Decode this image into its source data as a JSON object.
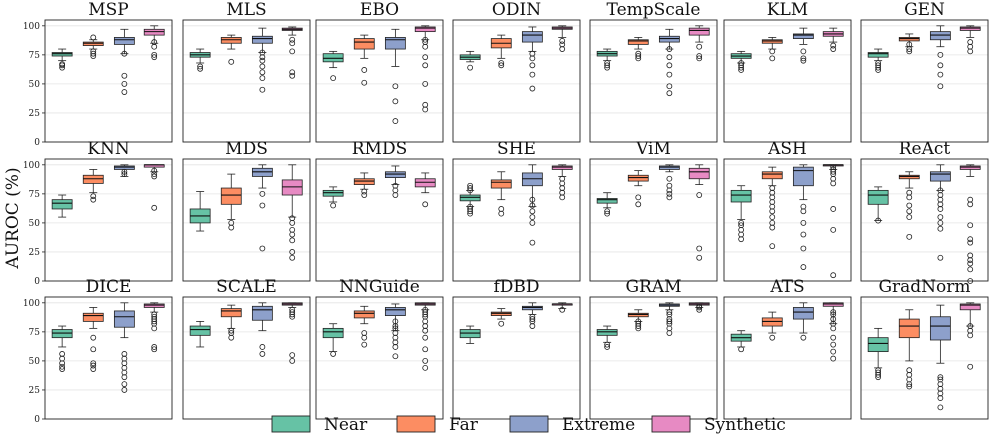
{
  "chart_data": {
    "type": "boxplot",
    "ylabel": "AUROC (%)",
    "ylim": [
      0,
      105
    ],
    "yticks": [
      0,
      25,
      50,
      75,
      100
    ],
    "categories": [
      "Near",
      "Far",
      "Extreme",
      "Synthetic"
    ],
    "colors": {
      "Near": "#66c2a5",
      "Far": "#fc8d62",
      "Extreme": "#8da0cb",
      "Synthetic": "#e78ac3"
    },
    "legend": {
      "position": "bottom-center",
      "labels": [
        "Near",
        "Far",
        "Extreme",
        "Synthetic"
      ]
    },
    "panels": [
      {
        "title": "MSP",
        "boxes": [
          [
            70,
            74,
            76,
            77,
            80,
            [
              64,
              66,
              67
            ]
          ],
          [
            80,
            83,
            85,
            86,
            88,
            [
              74,
              76,
              78,
              90
            ]
          ],
          [
            76,
            84,
            88,
            90,
            97,
            [
              43,
              50,
              57,
              76
            ]
          ],
          [
            85,
            92,
            95,
            97,
            100,
            [
              73,
              75,
              82,
              86
            ]
          ]
        ]
      },
      {
        "title": "MLS",
        "boxes": [
          [
            68,
            73,
            75,
            77,
            80,
            [
              63,
              65
            ]
          ],
          [
            80,
            85,
            88,
            90,
            92,
            [
              69
            ]
          ],
          [
            77,
            85,
            89,
            91,
            98,
            [
              45,
              55,
              60,
              65,
              70,
              73,
              77
            ]
          ],
          [
            92,
            96,
            97,
            98,
            99,
            [
              57,
              60,
              78,
              85,
              88
            ]
          ]
        ]
      },
      {
        "title": "EBO",
        "boxes": [
          [
            64,
            69,
            72,
            76,
            78,
            [
              55
            ]
          ],
          [
            72,
            80,
            86,
            89,
            92,
            [
              51,
              62
            ]
          ],
          [
            65,
            80,
            88,
            90,
            97,
            [
              18,
              35,
              48
            ]
          ],
          [
            88,
            95,
            98,
            99,
            100,
            [
              28,
              32,
              50,
              66,
              73,
              82,
              86,
              88
            ]
          ]
        ]
      },
      {
        "title": "ODIN",
        "boxes": [
          [
            69,
            71,
            73,
            75,
            78,
            [
              64
            ]
          ],
          [
            72,
            81,
            85,
            89,
            92,
            [
              66,
              68
            ]
          ],
          [
            78,
            86,
            92,
            95,
            99,
            [
              46,
              58,
              66,
              72,
              76
            ]
          ],
          [
            90,
            97,
            98,
            99,
            100,
            [
              80,
              84,
              87
            ]
          ]
        ]
      },
      {
        "title": "TempScale",
        "boxes": [
          [
            70,
            74,
            76,
            78,
            80,
            [
              64,
              66,
              68
            ]
          ],
          [
            80,
            84,
            87,
            88,
            90,
            [
              72,
              74,
              76
            ]
          ],
          [
            80,
            86,
            89,
            91,
            97,
            [
              42,
              48,
              58,
              66,
              73,
              80
            ]
          ],
          [
            86,
            92,
            96,
            98,
            100,
            [
              72,
              74,
              82
            ]
          ]
        ]
      },
      {
        "title": "KLM",
        "boxes": [
          [
            68,
            72,
            74,
            76,
            78,
            [
              62,
              64,
              66,
              68
            ]
          ],
          [
            80,
            85,
            87,
            88,
            90,
            [
              72,
              78
            ]
          ],
          [
            84,
            89,
            92,
            93,
            98,
            [
              70,
              72,
              78
            ]
          ],
          [
            86,
            91,
            93,
            95,
            98,
            [
              80,
              83
            ]
          ]
        ]
      },
      {
        "title": "GEN",
        "boxes": [
          [
            70,
            73,
            76,
            77,
            80,
            [
              62,
              64,
              66,
              68
            ]
          ],
          [
            82,
            87,
            89,
            90,
            93,
            [
              78,
              80,
              84
            ]
          ],
          [
            82,
            88,
            92,
            95,
            100,
            [
              48,
              58,
              66,
              75
            ]
          ],
          [
            90,
            96,
            98,
            99,
            100,
            [
              78,
              82,
              86
            ]
          ]
        ]
      },
      {
        "title": "KNN",
        "boxes": [
          [
            55,
            62,
            67,
            70,
            74,
            []
          ],
          [
            76,
            84,
            88,
            91,
            96,
            [
              70,
              73
            ]
          ],
          [
            90,
            96,
            98,
            99,
            100,
            [
              92,
              94
            ]
          ],
          [
            94,
            98,
            100,
            100,
            100,
            [
              63,
              90,
              92,
              95
            ]
          ]
        ]
      },
      {
        "title": "MDS",
        "boxes": [
          [
            43,
            50,
            56,
            62,
            77,
            []
          ],
          [
            53,
            66,
            74,
            80,
            92,
            [
              46,
              50
            ]
          ],
          [
            80,
            90,
            94,
            97,
            100,
            [
              28,
              65,
              75
            ]
          ],
          [
            55,
            74,
            81,
            87,
            100,
            [
              20,
              25,
              35,
              40,
              44,
              50,
              54
            ]
          ]
        ]
      },
      {
        "title": "RMDS",
        "boxes": [
          [
            68,
            73,
            76,
            78,
            81,
            [
              65
            ]
          ],
          [
            79,
            83,
            86,
            88,
            93,
            [
              74,
              77
            ]
          ],
          [
            83,
            89,
            92,
            94,
            99,
            [
              74,
              78,
              82
            ]
          ],
          [
            76,
            81,
            85,
            88,
            93,
            [
              66
            ]
          ]
        ]
      },
      {
        "title": "SHE",
        "boxes": [
          [
            64,
            69,
            72,
            74,
            78,
            [
              58,
              60,
              62,
              64,
              78,
              80,
              82
            ]
          ],
          [
            70,
            80,
            85,
            87,
            94,
            [
              58,
              62
            ]
          ],
          [
            64,
            82,
            88,
            93,
            100,
            [
              33,
              50,
              55,
              60,
              65,
              70
            ]
          ],
          [
            90,
            96,
            98,
            99,
            100,
            [
              72,
              76,
              80,
              84,
              88
            ]
          ]
        ]
      },
      {
        "title": "ViM",
        "boxes": [
          [
            63,
            67,
            70,
            71,
            76,
            [
              58,
              60
            ]
          ],
          [
            82,
            86,
            89,
            91,
            95,
            [
              66,
              72
            ]
          ],
          [
            94,
            96,
            98,
            99,
            100,
            [
              72,
              75,
              78,
              82,
              88
            ]
          ],
          [
            83,
            88,
            94,
            97,
            100,
            [
              20,
              28,
              74
            ]
          ]
        ]
      },
      {
        "title": "ASH",
        "boxes": [
          [
            53,
            68,
            74,
            78,
            82,
            [
              36,
              40,
              44,
              48,
              50
            ]
          ],
          [
            82,
            88,
            92,
            94,
            98,
            [
              30,
              46,
              50,
              55,
              60,
              64,
              68,
              72,
              76,
              80
            ]
          ],
          [
            70,
            82,
            95,
            98,
            100,
            [
              12,
              28,
              40,
              50,
              60,
              64
            ]
          ],
          [
            96,
            99,
            100,
            100,
            100,
            [
              5,
              44,
              62,
              84,
              88,
              92,
              94,
              96,
              98
            ]
          ]
        ]
      },
      {
        "title": "ReAct",
        "boxes": [
          [
            52,
            66,
            74,
            78,
            81,
            [
              52
            ]
          ],
          [
            80,
            88,
            90,
            91,
            94,
            [
              38,
              55,
              60,
              65,
              72,
              76
            ]
          ],
          [
            78,
            86,
            92,
            94,
            100,
            [
              20,
              45,
              50,
              55,
              62,
              66,
              70,
              74,
              78
            ]
          ],
          [
            90,
            96,
            98,
            99,
            100,
            [
              0,
              10,
              15,
              18,
              22,
              33,
              36,
              48,
              66,
              70
            ]
          ]
        ]
      },
      {
        "title": "DICE",
        "boxes": [
          [
            62,
            70,
            74,
            77,
            80,
            [
              43,
              45,
              48,
              52,
              56
            ]
          ],
          [
            78,
            84,
            89,
            91,
            96,
            [
              43,
              46,
              48,
              60,
              70
            ]
          ],
          [
            70,
            79,
            88,
            93,
            100,
            [
              25,
              30,
              36,
              40,
              44,
              48,
              52,
              56
            ]
          ],
          [
            92,
            96,
            98,
            99,
            100,
            [
              60,
              62,
              78,
              82,
              84,
              86,
              88,
              90
            ]
          ]
        ]
      },
      {
        "title": "SCALE",
        "boxes": [
          [
            62,
            72,
            77,
            80,
            84,
            []
          ],
          [
            78,
            88,
            93,
            95,
            98,
            [
              70,
              74,
              76
            ]
          ],
          [
            76,
            85,
            94,
            97,
            100,
            [
              56,
              62
            ]
          ],
          [
            96,
            98,
            99,
            100,
            100,
            [
              50,
              55,
              88,
              90,
              92,
              94
            ]
          ]
        ]
      },
      {
        "title": "NNGuide",
        "boxes": [
          [
            58,
            70,
            75,
            78,
            82,
            [
              56
            ]
          ],
          [
            82,
            87,
            91,
            93,
            97,
            [
              64,
              70,
              74
            ]
          ],
          [
            76,
            89,
            94,
            96,
            99,
            [
              54,
              62,
              66,
              70,
              74,
              78,
              80,
              84
            ]
          ],
          [
            94,
            98,
            99,
            100,
            100,
            [
              44,
              50,
              60,
              70,
              76,
              80,
              84,
              88,
              90,
              92,
              94
            ]
          ]
        ]
      },
      {
        "title": "fDBD",
        "boxes": [
          [
            65,
            70,
            74,
            77,
            80,
            []
          ],
          [
            86,
            89,
            91,
            92,
            95,
            [
              82
            ]
          ],
          [
            90,
            94,
            96,
            97,
            100,
            [
              80,
              84,
              86,
              88
            ]
          ],
          [
            95,
            98,
            99,
            99,
            100,
            [
              94
            ]
          ]
        ]
      },
      {
        "title": "GRAM",
        "boxes": [
          [
            66,
            72,
            75,
            77,
            80,
            [
              62,
              64
            ]
          ],
          [
            84,
            88,
            90,
            91,
            94,
            [
              78,
              80,
              82,
              84
            ]
          ],
          [
            94,
            97,
            98,
            99,
            100,
            [
              74,
              78,
              82,
              84,
              86,
              90,
              92
            ]
          ],
          [
            96,
            98,
            99,
            100,
            100,
            [
              94,
              96,
              97
            ]
          ]
        ]
      },
      {
        "title": "ATS",
        "boxes": [
          [
            62,
            67,
            70,
            73,
            76,
            [
              60
            ]
          ],
          [
            74,
            80,
            84,
            87,
            92,
            [
              70
            ]
          ],
          [
            74,
            86,
            92,
            96,
            100,
            [
              70
            ]
          ],
          [
            82,
            97,
            99,
            100,
            100,
            [
              52,
              58,
              64,
              70,
              78,
              82,
              86,
              90,
              92
            ]
          ]
        ]
      },
      {
        "title": "GradNorm",
        "boxes": [
          [
            44,
            58,
            65,
            70,
            78,
            [
              36,
              38,
              40,
              42
            ]
          ],
          [
            50,
            70,
            80,
            86,
            94,
            [
              28,
              30,
              34,
              38,
              42
            ]
          ],
          [
            48,
            68,
            80,
            88,
            98,
            [
              10,
              18,
              22,
              26,
              30,
              34,
              36
            ]
          ],
          [
            80,
            94,
            98,
            99,
            100,
            [
              45,
              72,
              76,
              80
            ]
          ]
        ]
      }
    ]
  }
}
